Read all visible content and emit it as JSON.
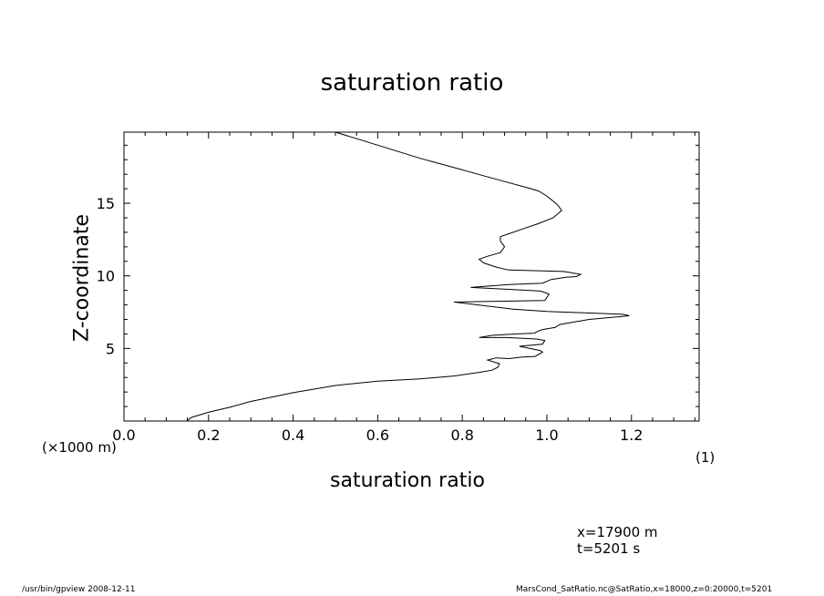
{
  "chart_data": {
    "type": "line",
    "title": "saturation ratio",
    "xlabel": "saturation ratio",
    "ylabel": "Z-coordinate",
    "x_unit_label": "(1)",
    "y_unit_label": "(×1000 m)",
    "xlim": [
      0.0,
      1.36
    ],
    "ylim": [
      0.0,
      19.9
    ],
    "xticks": [
      "0.0",
      "0.2",
      "0.4",
      "0.6",
      "0.8",
      "1.0",
      "1.2"
    ],
    "yticks": [
      "5",
      "10",
      "15"
    ],
    "grid": false,
    "series": [
      {
        "x": [
          0.148,
          0.16,
          0.2,
          0.25,
          0.3,
          0.4,
          0.5,
          0.6,
          0.7,
          0.78,
          0.84,
          0.87,
          0.884,
          0.888,
          0.86,
          0.88,
          0.91,
          0.94,
          0.972,
          0.99,
          0.985,
          0.96,
          0.935,
          0.99,
          0.995,
          0.975,
          0.905,
          0.84,
          0.87,
          0.93,
          0.97,
          0.98,
          0.99,
          1.02,
          1.03,
          1.1,
          1.195,
          1.18,
          1.0,
          0.92,
          0.78,
          0.995,
          1.005,
          0.985,
          0.92,
          0.82,
          0.91,
          0.95,
          0.99,
          1.01,
          1.045,
          1.07,
          1.08,
          1.04,
          0.98,
          0.91,
          0.88,
          0.85,
          0.84,
          0.86,
          0.89,
          0.9,
          0.89,
          0.89,
          0.91,
          0.94,
          0.98,
          1.015,
          1.035,
          1.025,
          1.0,
          0.98,
          0.95,
          0.9,
          0.85,
          0.8,
          0.75,
          0.7,
          0.6,
          0.5
        ],
        "y": [
          0.0,
          0.25,
          0.6,
          0.95,
          1.35,
          1.95,
          2.45,
          2.75,
          2.9,
          3.1,
          3.35,
          3.5,
          3.7,
          3.95,
          4.2,
          4.35,
          4.3,
          4.4,
          4.45,
          4.75,
          4.85,
          5.0,
          5.15,
          5.3,
          5.55,
          5.65,
          5.75,
          5.75,
          5.9,
          6.0,
          6.05,
          6.2,
          6.3,
          6.45,
          6.65,
          7.0,
          7.25,
          7.35,
          7.55,
          7.7,
          8.2,
          8.3,
          8.75,
          8.95,
          9.05,
          9.2,
          9.4,
          9.45,
          9.5,
          9.75,
          9.9,
          9.95,
          10.1,
          10.3,
          10.35,
          10.4,
          10.6,
          10.9,
          11.15,
          11.35,
          11.6,
          12.0,
          12.4,
          12.7,
          12.9,
          13.2,
          13.6,
          14.0,
          14.5,
          14.9,
          15.5,
          15.85,
          16.1,
          16.5,
          16.9,
          17.3,
          17.7,
          18.1,
          19.0,
          19.9
        ]
      }
    ]
  },
  "info": {
    "x_position": "x=17900  m",
    "time": "t=5201  s"
  },
  "footer": {
    "left": "/usr/bin/gpview   2008-12-11",
    "right": "MarsCond_SatRatio.nc@SatRatio,x=18000,z=0:20000,t=5201"
  }
}
